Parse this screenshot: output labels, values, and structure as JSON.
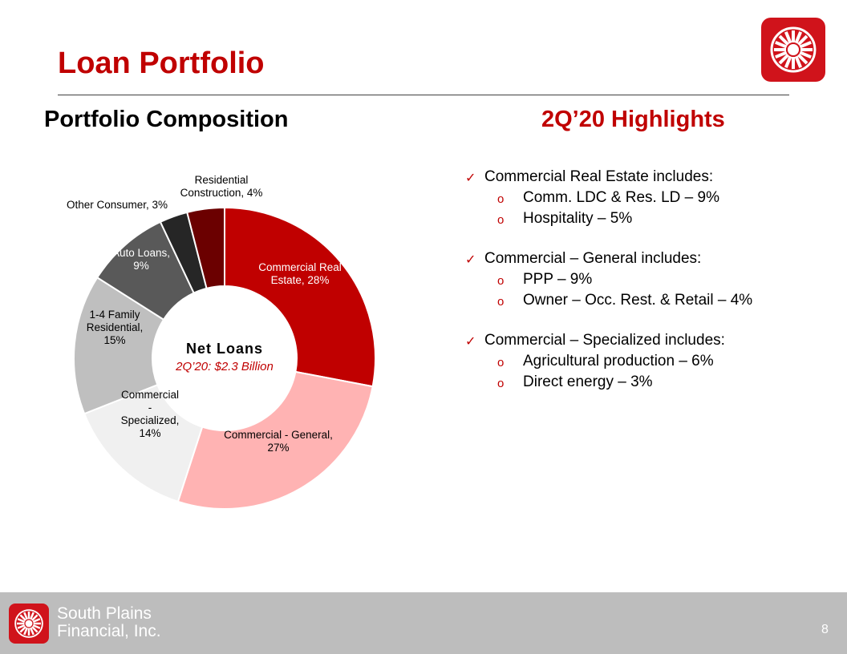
{
  "slide": {
    "title": "Loan Portfolio",
    "left_heading": "Portfolio Composition",
    "right_heading": "2Q’20 Highlights",
    "page_number": "8"
  },
  "brand": {
    "company_line1": "South Plains",
    "company_line2": "Financial, Inc.",
    "logo_icon": "sunburst-logo-icon",
    "brand_color": "#c00000"
  },
  "highlights": [
    {
      "text": "Commercial Real Estate includes:",
      "subs": [
        "Comm.  LDC & Res. LD – 9%",
        "Hospitality – 5%"
      ]
    },
    {
      "text": "Commercial – General includes:",
      "subs": [
        "PPP – 9%",
        "Owner – Occ. Rest. & Retail – 4%"
      ]
    },
    {
      "text": "Commercial – Specialized includes:",
      "subs": [
        "Agricultural production – 6%",
        "Direct energy – 3%"
      ]
    }
  ],
  "chart_data": {
    "type": "pie",
    "variant": "donut",
    "center_title": "Net Loans",
    "center_subtitle": "2Q’20: $2.3 Billion",
    "slices": [
      {
        "label_lines": [
          "Commercial Real",
          "Estate, 28%"
        ],
        "value": 28,
        "color": "#c00000",
        "label_color": "#ffffff"
      },
      {
        "label_lines": [
          "Commercial - General,",
          "27%"
        ],
        "value": 27,
        "color": "#ffb3b3",
        "label_color": "#000000"
      },
      {
        "label_lines": [
          "Commercial",
          "-",
          "Specialized,",
          "14%"
        ],
        "value": 14,
        "color": "#f0f0f0",
        "label_color": "#000000"
      },
      {
        "label_lines": [
          "1-4 Family",
          "Residential,",
          "15%"
        ],
        "value": 15,
        "color": "#bfbfbf",
        "label_color": "#000000"
      },
      {
        "label_lines": [
          "Auto Loans,",
          "9%"
        ],
        "value": 9,
        "color": "#595959",
        "label_color": "#ffffff"
      },
      {
        "label_lines": [
          "Other Consumer, 3%"
        ],
        "value": 3,
        "color": "#262626",
        "label_color": "#000000"
      },
      {
        "label_lines": [
          "Residential",
          "Construction, 4%"
        ],
        "value": 4,
        "color": "#6b0000",
        "label_color": "#000000"
      }
    ]
  }
}
